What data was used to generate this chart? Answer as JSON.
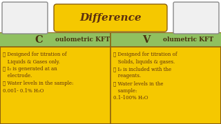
{
  "title": "Difference",
  "title_bg": "#F5C800",
  "title_color": "#5C3010",
  "title_fontsize": 11,
  "header_bg": "#90C060",
  "header_color": "#4A3010",
  "header_fontsize": 6.5,
  "body_bg": "#F5C800",
  "body_color": "#5C3010",
  "body_fontsize": 5.0,
  "left_bullet": "➤",
  "left_lines": [
    "➤ Designed for titration of",
    "   Liquids & Gases only.",
    "➤ I₂ is generated at an",
    "   electrode.",
    "➤ Water levels in the sample:",
    "0.001- 0.1% H₂O"
  ],
  "right_lines": [
    "➤ Designed for titration of",
    "   Solids, liquids & gases.",
    "➤ I₂ is included with the",
    "   reagents.",
    "➤ Water levels in the",
    "   sample:",
    "0.1-100% H₂O"
  ],
  "divider_color": "#8B6010",
  "border_color": "#8B6010",
  "bg_color": "#FFFFFF",
  "img_box_color": "#F0F0F0",
  "img_border_color": "#888888"
}
